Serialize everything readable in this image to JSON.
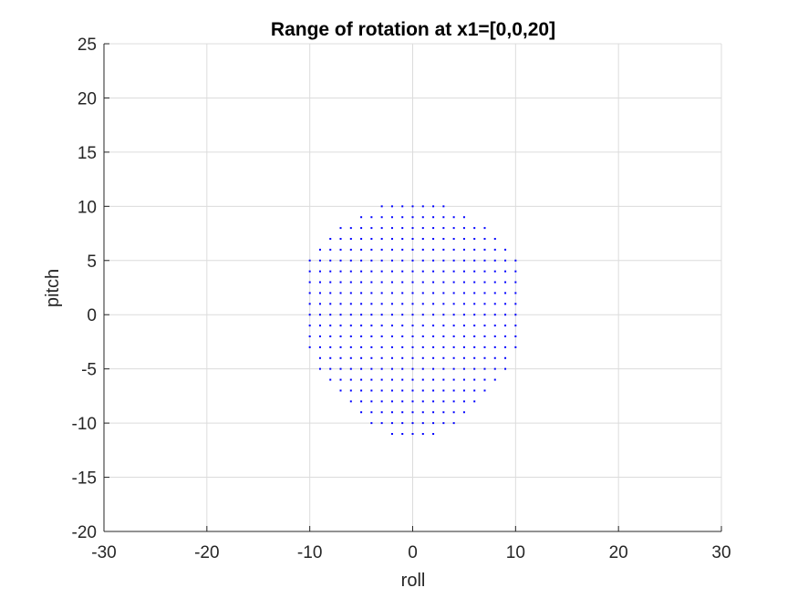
{
  "chart_data": {
    "type": "scatter",
    "title": "Range of rotation at x1=[0,0,20]",
    "xlabel": "roll",
    "ylabel": "pitch",
    "xlim": [
      -30,
      30
    ],
    "ylim": [
      -20,
      25
    ],
    "xticks": [
      -30,
      -20,
      -10,
      0,
      10,
      20,
      30
    ],
    "yticks": [
      -20,
      -15,
      -10,
      -5,
      0,
      5,
      10,
      15,
      20,
      25
    ],
    "grid": true,
    "marker_color": "#0000ff",
    "point_rows": [
      {
        "y": 10,
        "x_min": -3,
        "x_max": 3
      },
      {
        "y": 9,
        "x_min": -5,
        "x_max": 5
      },
      {
        "y": 8,
        "x_min": -7,
        "x_max": 7
      },
      {
        "y": 7,
        "x_min": -8,
        "x_max": 8
      },
      {
        "y": 6,
        "x_min": -9,
        "x_max": 9
      },
      {
        "y": 5,
        "x_min": -10,
        "x_max": 10
      },
      {
        "y": 4,
        "x_min": -10,
        "x_max": 10
      },
      {
        "y": 3,
        "x_min": -10,
        "x_max": 10
      },
      {
        "y": 2,
        "x_min": -10,
        "x_max": 10
      },
      {
        "y": 1,
        "x_min": -10,
        "x_max": 10
      },
      {
        "y": 0,
        "x_min": -10,
        "x_max": 10
      },
      {
        "y": -1,
        "x_min": -10,
        "x_max": 10
      },
      {
        "y": -2,
        "x_min": -10,
        "x_max": 10
      },
      {
        "y": -3,
        "x_min": -10,
        "x_max": 10
      },
      {
        "y": -4,
        "x_min": -9,
        "x_max": 9
      },
      {
        "y": -5,
        "x_min": -9,
        "x_max": 9
      },
      {
        "y": -6,
        "x_min": -8,
        "x_max": 8
      },
      {
        "y": -7,
        "x_min": -7,
        "x_max": 7
      },
      {
        "y": -8,
        "x_min": -6,
        "x_max": 6
      },
      {
        "y": -9,
        "x_min": -5,
        "x_max": 5
      },
      {
        "y": -10,
        "x_min": -4,
        "x_max": 4
      },
      {
        "y": -11,
        "x_min": -2,
        "x_max": 2
      }
    ]
  }
}
